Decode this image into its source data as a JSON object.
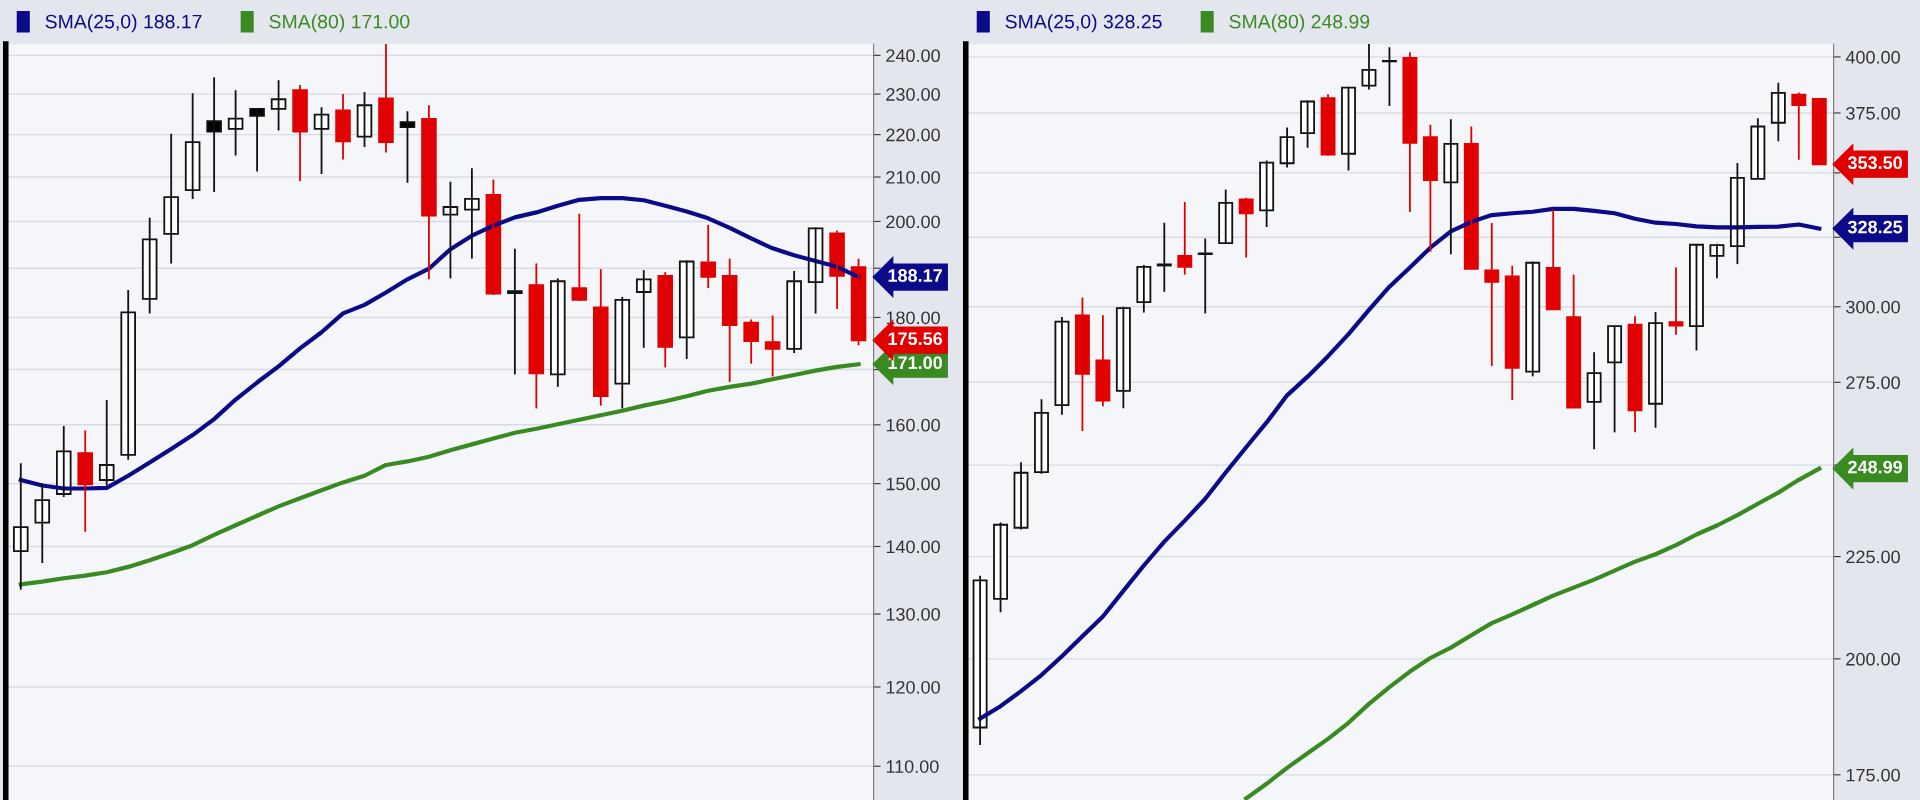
{
  "chart_data": [
    {
      "type": "candlestick",
      "categories": [
        null,
        null,
        null,
        null,
        null,
        null,
        null,
        null,
        null,
        null,
        null,
        null,
        null,
        null,
        null,
        null,
        null,
        null,
        null,
        null,
        null,
        null,
        null,
        null,
        null,
        null,
        null,
        null,
        null,
        null,
        null,
        null,
        null,
        null,
        null,
        null,
        null,
        null,
        null,
        null
      ],
      "ohlc": [
        [
          139.3,
          153.4,
          133.5,
          143.0
        ],
        [
          143.7,
          150.0,
          137.5,
          147.3
        ],
        [
          148.3,
          159.8,
          147.8,
          155.4
        ],
        [
          155.1,
          159.0,
          142.3,
          149.9
        ],
        [
          150.6,
          164.4,
          149.7,
          153.1
        ],
        [
          154.8,
          185.5,
          154.0,
          181.0
        ],
        [
          183.7,
          200.8,
          180.8,
          196.1
        ],
        [
          197.3,
          220.2,
          191.0,
          205.4
        ],
        [
          207.0,
          230.2,
          205.0,
          218.2
        ],
        [
          223.3,
          234.3,
          206.6,
          220.7
        ],
        [
          221.4,
          231.0,
          215.0,
          223.9
        ],
        [
          226.3,
          226.5,
          211.3,
          224.6
        ],
        [
          226.3,
          233.5,
          221.0,
          228.7
        ],
        [
          231.0,
          232.3,
          209.1,
          220.7
        ],
        [
          221.4,
          226.7,
          210.7,
          224.9
        ],
        [
          225.9,
          230.0,
          214.1,
          218.4
        ],
        [
          219.5,
          230.5,
          217.0,
          227.2
        ],
        [
          228.9,
          243.0,
          215.7,
          218.2
        ],
        [
          223.0,
          225.7,
          208.7,
          221.8
        ],
        [
          223.8,
          227.2,
          187.7,
          201.3
        ],
        [
          201.5,
          208.9,
          187.9,
          203.2
        ],
        [
          202.6,
          212.0,
          192.0,
          205.0
        ],
        [
          205.9,
          209.4,
          184.5,
          184.8
        ],
        [
          184.9,
          194.1,
          169.1,
          185.3
        ],
        [
          186.5,
          191.0,
          162.9,
          169.3
        ],
        [
          169.1,
          187.9,
          166.8,
          187.3
        ],
        [
          185.9,
          201.7,
          183.3,
          183.5
        ],
        [
          182.0,
          189.8,
          163.4,
          165.1
        ],
        [
          167.4,
          184.1,
          162.9,
          183.5
        ],
        [
          185.1,
          189.6,
          174.1,
          187.7
        ],
        [
          188.4,
          189.2,
          170.4,
          174.3
        ],
        [
          176.1,
          191.6,
          172.0,
          191.4
        ],
        [
          191.2,
          199.2,
          185.9,
          188.2
        ],
        [
          188.4,
          192.0,
          167.7,
          178.5
        ],
        [
          179.0,
          179.6,
          171.1,
          175.4
        ],
        [
          175.2,
          180.4,
          168.7,
          173.9
        ],
        [
          173.9,
          189.4,
          173.1,
          187.3
        ],
        [
          187.1,
          198.7,
          180.8,
          198.5
        ],
        [
          197.4,
          198.0,
          181.7,
          188.4
        ],
        [
          190.2,
          192.0,
          174.6,
          175.56
        ]
      ],
      "colors": [
        "#ffffff",
        "#ffffff",
        "#ffffff",
        "#e00000",
        "#ffffff",
        "#ffffff",
        "#ffffff",
        "#ffffff",
        "#ffffff",
        "#000000",
        "#ffffff",
        "#000000",
        "#ffffff",
        "#e00000",
        "#ffffff",
        "#e00000",
        "#ffffff",
        "#e00000",
        "#000000",
        "#e00000",
        "#ffffff",
        "#ffffff",
        "#e00000",
        "#ffffff",
        "#e00000",
        "#ffffff",
        "#e00000",
        "#e00000",
        "#ffffff",
        "#ffffff",
        "#e00000",
        "#ffffff",
        "#e00000",
        "#e00000",
        "#e00000",
        "#e00000",
        "#ffffff",
        "#ffffff",
        "#e00000",
        "#e00000"
      ],
      "value_labels": [
        null,
        null,
        null,
        null,
        null,
        null,
        null,
        null,
        null,
        null,
        null,
        null,
        null,
        null,
        null,
        null,
        null,
        null,
        null,
        null,
        null,
        null,
        null,
        null,
        null,
        null,
        null,
        null,
        null,
        null,
        null,
        null,
        null,
        null,
        null,
        null,
        null,
        null,
        null,
        "175.56"
      ],
      "series": [
        {
          "type": "line",
          "name": "SMA(25,0) 188.17",
          "color": "#0b0b8a",
          "values": [
            150.6,
            149.7,
            149.2,
            149.2,
            149.3,
            151.3,
            153.5,
            155.8,
            158.2,
            161.0,
            164.5,
            167.6,
            170.6,
            174.0,
            177.1,
            180.8,
            182.5,
            185.0,
            187.7,
            189.9,
            194.0,
            196.9,
            199.1,
            200.9,
            202.0,
            203.5,
            204.8,
            205.2,
            205.2,
            204.7,
            203.5,
            202.2,
            200.7,
            198.6,
            196.3,
            194.2,
            192.7,
            191.5,
            190.3,
            188.17
          ],
          "value_labels": [
            null,
            null,
            null,
            null,
            null,
            null,
            null,
            null,
            null,
            null,
            null,
            null,
            null,
            null,
            null,
            null,
            null,
            null,
            null,
            null,
            null,
            null,
            null,
            null,
            null,
            null,
            null,
            null,
            null,
            null,
            null,
            null,
            null,
            null,
            null,
            null,
            null,
            null,
            null,
            "188.17"
          ]
        },
        {
          "type": "line",
          "name": "SMA(80) 171.00",
          "color": "#3a8a22",
          "values": [
            134.3,
            134.7,
            135.2,
            135.6,
            136.1,
            136.9,
            137.9,
            139.0,
            140.2,
            141.8,
            143.3,
            144.8,
            146.3,
            147.6,
            148.9,
            150.2,
            151.3,
            153.1,
            153.7,
            154.5,
            155.6,
            156.6,
            157.6,
            158.6,
            159.3,
            160.1,
            160.9,
            161.7,
            162.5,
            163.4,
            164.2,
            165.1,
            166.1,
            166.8,
            167.4,
            168.2,
            169.0,
            169.8,
            170.5,
            171.0
          ],
          "value_labels": [
            null,
            null,
            null,
            null,
            null,
            null,
            null,
            null,
            null,
            null,
            null,
            null,
            null,
            null,
            null,
            null,
            null,
            null,
            null,
            null,
            null,
            null,
            null,
            null,
            null,
            null,
            null,
            null,
            null,
            null,
            null,
            null,
            null,
            null,
            null,
            null,
            null,
            null,
            null,
            "171.00"
          ]
        }
      ],
      "ylim": [
        106,
        243
      ],
      "log": true,
      "grid": "y",
      "legend": "top left",
      "tick_labels": "y",
      "yticks": [
        {
          "value": 110,
          "label": "110.00"
        },
        {
          "value": 120,
          "label": "120.00"
        },
        {
          "value": 130,
          "label": "130.00"
        },
        {
          "value": 140,
          "label": "140.00"
        },
        {
          "value": 150,
          "label": "150.00"
        },
        {
          "value": 160,
          "label": "160.00"
        },
        {
          "value": 170,
          "label": null
        },
        {
          "value": 180,
          "label": "180.00"
        },
        {
          "value": 190,
          "label": null
        },
        {
          "value": 200,
          "label": "200.00"
        },
        {
          "value": 210,
          "label": "210.00"
        },
        {
          "value": 220,
          "label": "220.00"
        },
        {
          "value": 230,
          "label": "230.00"
        },
        {
          "value": 240,
          "label": "240.00"
        }
      ]
    },
    {
      "type": "candlestick",
      "categories": [
        null,
        null,
        null,
        null,
        null,
        null,
        null,
        null,
        null,
        null,
        null,
        null,
        null,
        null,
        null,
        null,
        null,
        null,
        null,
        null,
        null,
        null,
        null,
        null,
        null,
        null,
        null,
        null,
        null,
        null,
        null,
        null,
        null,
        null,
        null,
        null,
        null,
        null,
        null,
        null,
        null,
        null
      ],
      "ohlc": [
        [
          184.8,
          220.1,
          181.1,
          218.9
        ],
        [
          214.3,
          234.0,
          211.0,
          233.4
        ],
        [
          232.6,
          250.8,
          232.1,
          247.8
        ],
        [
          248.0,
          269.7,
          247.5,
          265.5
        ],
        [
          267.9,
          296.5,
          264.9,
          294.9
        ],
        [
          297.0,
          303.2,
          260.0,
          277.7
        ],
        [
          282.0,
          297.1,
          267.5,
          269.3
        ],
        [
          272.3,
          300.0,
          266.9,
          299.5
        ],
        [
          301.6,
          314.8,
          298.0,
          314.1
        ],
        [
          315.0,
          330.5,
          305.2,
          314.6
        ],
        [
          318.1,
          338.5,
          311.3,
          314.1
        ],
        [
          319.0,
          324.5,
          297.7,
          318.8
        ],
        [
          322.8,
          343.4,
          322.8,
          338.1
        ],
        [
          339.5,
          340.1,
          317.5,
          334.1
        ],
        [
          335.2,
          355.0,
          328.9,
          354.2
        ],
        [
          353.9,
          368.8,
          352.2,
          364.7
        ],
        [
          366.4,
          380.4,
          360.3,
          380.0
        ],
        [
          381.5,
          383.2,
          357.0,
          357.4
        ],
        [
          357.8,
          386.5,
          351.0,
          386.1
        ],
        [
          387.0,
          406.0,
          385.3,
          394.1
        ],
        [
          398.2,
          404.5,
          378.0,
          398.0
        ],
        [
          399.6,
          402.2,
          334.6,
          362.3
        ],
        [
          364.7,
          370.0,
          319.6,
          347.1
        ],
        [
          346.2,
          372.3,
          318.7,
          361.9
        ],
        [
          361.9,
          369.2,
          313.1,
          313.4
        ],
        [
          312.8,
          330.4,
          280.2,
          308.7
        ],
        [
          310.7,
          314.5,
          269.4,
          279.6
        ],
        [
          278.4,
          316.0,
          276.9,
          315.6
        ],
        [
          313.7,
          335.5,
          299.1,
          299.1
        ],
        [
          296.4,
          311.3,
          267.1,
          267.1
        ],
        [
          268.9,
          284.7,
          254.6,
          277.9
        ],
        [
          281.4,
          293.4,
          259.6,
          293.4
        ],
        [
          293.9,
          296.7,
          259.6,
          266.3
        ],
        [
          268.3,
          298.2,
          261.0,
          294.4
        ],
        [
          294.7,
          313.9,
          290.5,
          293.6
        ],
        [
          293.4,
          322.2,
          285.3,
          322.2
        ],
        [
          318.1,
          322.6,
          310.0,
          322.1
        ],
        [
          321.7,
          354.0,
          315.1,
          348.0
        ],
        [
          347.6,
          372.7,
          347.6,
          369.2
        ],
        [
          370.8,
          388.3,
          363.0,
          383.8
        ],
        [
          383.0,
          383.9,
          355.3,
          378.4
        ],
        [
          381.1,
          381.5,
          353.5,
          353.5
        ]
      ],
      "colors": [
        "#ffffff",
        "#ffffff",
        "#ffffff",
        "#ffffff",
        "#ffffff",
        "#e00000",
        "#e00000",
        "#ffffff",
        "#ffffff",
        "#000000",
        "#e00000",
        "#000000",
        "#ffffff",
        "#e00000",
        "#ffffff",
        "#ffffff",
        "#ffffff",
        "#e00000",
        "#ffffff",
        "#ffffff",
        "#000000",
        "#e00000",
        "#e00000",
        "#ffffff",
        "#e00000",
        "#e00000",
        "#e00000",
        "#ffffff",
        "#e00000",
        "#e00000",
        "#ffffff",
        "#ffffff",
        "#e00000",
        "#ffffff",
        "#e00000",
        "#ffffff",
        "#ffffff",
        "#ffffff",
        "#ffffff",
        "#ffffff",
        "#e00000",
        "#e00000"
      ],
      "value_labels": [
        null,
        null,
        null,
        null,
        null,
        null,
        null,
        null,
        null,
        null,
        null,
        null,
        null,
        null,
        null,
        null,
        null,
        null,
        null,
        null,
        null,
        null,
        null,
        null,
        null,
        null,
        null,
        null,
        null,
        null,
        null,
        null,
        null,
        null,
        null,
        null,
        null,
        null,
        null,
        null,
        null,
        "353.50"
      ],
      "series": [
        {
          "type": "line",
          "name": "SMA(25,0) 328.25",
          "color": "#0b0b8a",
          "values": [
            186.7,
            189.4,
            192.7,
            196.3,
            200.6,
            205.3,
            210.0,
            216.3,
            222.7,
            228.9,
            234.5,
            240.5,
            247.9,
            255.2,
            262.6,
            270.9,
            276.8,
            283.4,
            290.7,
            298.9,
            307.0,
            313.9,
            321.1,
            327.2,
            330.8,
            333.4,
            334.1,
            334.7,
            335.8,
            335.8,
            335.0,
            334.1,
            332.0,
            330.5,
            330.0,
            329.1,
            328.7,
            328.7,
            328.9,
            329.0,
            329.8,
            328.25
          ],
          "value_labels": [
            null,
            null,
            null,
            null,
            null,
            null,
            null,
            null,
            null,
            null,
            null,
            null,
            null,
            null,
            null,
            null,
            null,
            null,
            null,
            null,
            null,
            null,
            null,
            null,
            null,
            null,
            null,
            null,
            null,
            null,
            null,
            null,
            null,
            null,
            null,
            null,
            null,
            null,
            null,
            null,
            null,
            "328.25"
          ]
        },
        {
          "type": "line",
          "name": "SMA(80) 248.99",
          "color": "#3a8a22",
          "values": [
            null,
            null,
            null,
            null,
            null,
            null,
            null,
            null,
            null,
            null,
            null,
            null,
            null,
            170.3,
            173.2,
            176.4,
            179.4,
            182.4,
            185.8,
            189.9,
            193.6,
            197.1,
            200.2,
            202.6,
            205.5,
            208.4,
            210.5,
            212.8,
            215.1,
            217.1,
            219.1,
            221.4,
            223.7,
            225.6,
            228.0,
            230.8,
            233.2,
            236.0,
            239.1,
            242.2,
            245.8,
            248.99
          ],
          "value_labels": [
            null,
            null,
            null,
            null,
            null,
            null,
            null,
            null,
            null,
            null,
            null,
            null,
            null,
            null,
            null,
            null,
            null,
            null,
            null,
            null,
            null,
            null,
            null,
            null,
            null,
            null,
            null,
            null,
            null,
            null,
            null,
            null,
            null,
            null,
            null,
            null,
            null,
            null,
            null,
            null,
            null,
            "248.99"
          ]
        }
      ],
      "ylim": [
        170,
        406
      ],
      "log": true,
      "grid": "y",
      "legend": "top left",
      "tick_labels": "y",
      "yticks": [
        {
          "value": 175,
          "label": "175.00"
        },
        {
          "value": 200,
          "label": "200.00"
        },
        {
          "value": 225,
          "label": "225.00"
        },
        {
          "value": 250,
          "label": null
        },
        {
          "value": 275,
          "label": "275.00"
        },
        {
          "value": 300,
          "label": "300.00"
        },
        {
          "value": 325,
          "label": null
        },
        {
          "value": 350,
          "label": null
        },
        {
          "value": 375,
          "label": "375.00"
        },
        {
          "value": 400,
          "label": "400.00"
        }
      ]
    }
  ]
}
